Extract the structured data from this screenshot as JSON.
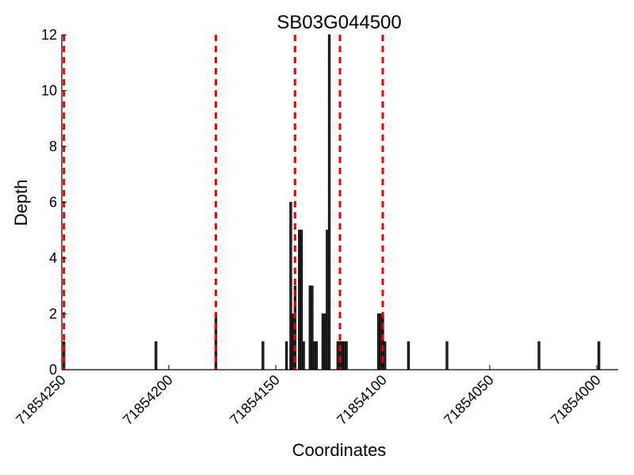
{
  "chart_data": {
    "type": "bar",
    "title": "SB03G044500",
    "xlabel": "Coordinates",
    "ylabel": "Depth",
    "xlim": [
      71854250,
      71853990
    ],
    "ylim": [
      0,
      12
    ],
    "x_inverted": true,
    "yticks": [
      "0",
      "2",
      "4",
      "6",
      "8",
      "10",
      "12"
    ],
    "xticks": [
      "71854250",
      "71854200",
      "71854150",
      "71854100",
      "71854050",
      "71854000"
    ],
    "bars": {
      "x": [
        71854249,
        71854206,
        71854178,
        71854156,
        71854145,
        71854143,
        71854142,
        71854141,
        71854139,
        71854138,
        71854137,
        71854134,
        71854133,
        71854132,
        71854131,
        71854128,
        71854127,
        71854126,
        71854125,
        71854121,
        71854120,
        71854119,
        71854118,
        71854117,
        71854102,
        71854101,
        71854100,
        71854099,
        71854088,
        71854070,
        71854027,
        71853999
      ],
      "values": [
        1,
        1,
        2,
        1,
        1,
        6,
        2,
        3,
        5,
        5,
        1,
        3,
        3,
        1,
        1,
        2,
        2,
        5,
        12,
        1,
        1,
        1,
        1,
        1,
        2,
        2,
        2,
        1,
        1,
        1,
        1,
        1
      ]
    },
    "vertical_lines": [
      71854249,
      71854178,
      71854141,
      71854120,
      71854100
    ],
    "vertical_line_color": "#ee0000",
    "bar_color": "#333333",
    "grid": false
  }
}
